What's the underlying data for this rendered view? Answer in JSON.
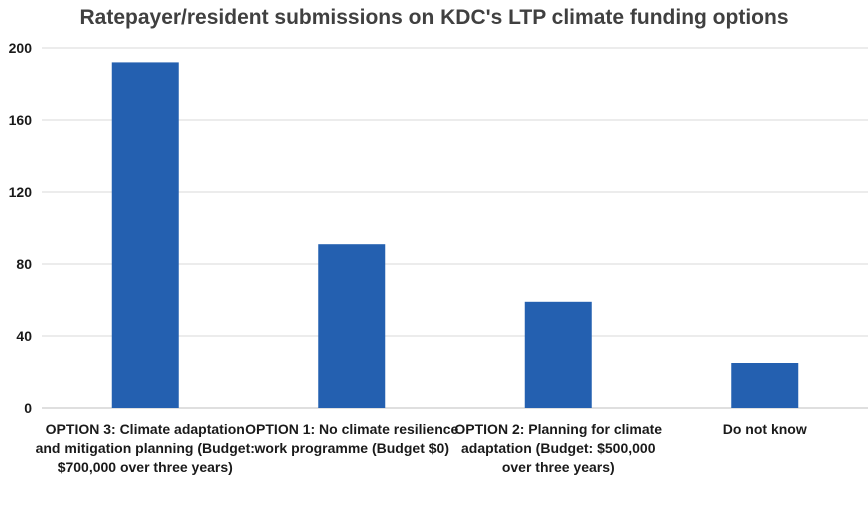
{
  "chart_data": {
    "type": "bar",
    "title": "Ratepayer/resident submissions on KDC's LTP climate funding options",
    "xlabel": "",
    "ylabel": "",
    "categories": [
      "OPTION 3: Climate adaptation and mitigation planning (Budget: $700,000 over three years)",
      "OPTION 1: No climate resilience work programme (Budget $0)",
      "OPTION 2: Planning for climate adaptation (Budget: $500,000 over three years)",
      "Do not know"
    ],
    "values": [
      192,
      91,
      59,
      25
    ],
    "ylim": [
      0,
      200
    ],
    "yticks": [
      "0",
      "40",
      "80",
      "120",
      "160",
      "200"
    ],
    "grid": true,
    "legend": "none",
    "bar_color": "#2460b0",
    "grid_color": "#d9d9d9"
  }
}
